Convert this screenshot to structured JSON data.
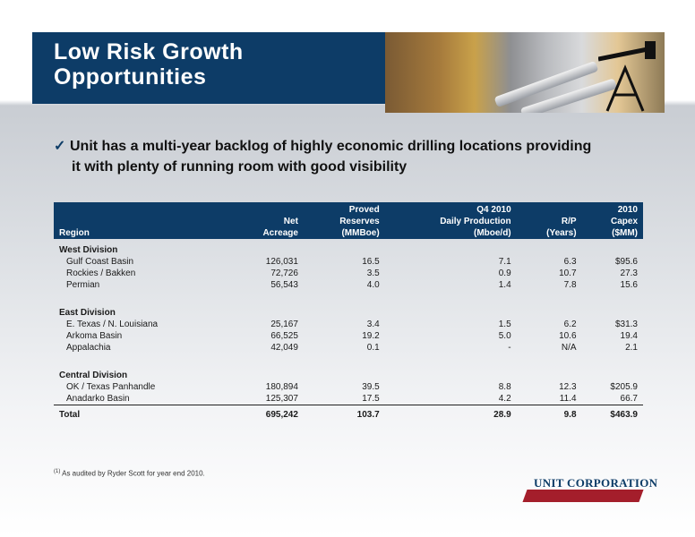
{
  "header": {
    "title_line1": "Low Risk Growth",
    "title_line2": "Opportunities"
  },
  "bullet": {
    "line1": "Unit has a multi-year backlog of highly economic drilling locations providing",
    "line2": "it with plenty of running room with good visibility"
  },
  "table": {
    "headers_row1": [
      "",
      "",
      "Proved",
      "Q4 2010",
      "",
      "2010"
    ],
    "headers_row2": [
      "",
      "Net",
      "Reserves",
      "Daily Production",
      "R/P",
      "Capex"
    ],
    "headers_row3": [
      "Region",
      "Acreage",
      "(MMBoe)",
      "(Mboe/d)",
      "(Years)",
      "($MM)"
    ],
    "west": {
      "name": "West Division",
      "rows": [
        [
          "Gulf Coast Basin",
          "126,031",
          "16.5",
          "7.1",
          "6.3",
          "$95.6"
        ],
        [
          "Rockies / Bakken",
          "72,726",
          "3.5",
          "0.9",
          "10.7",
          "27.3"
        ],
        [
          "Permian",
          "56,543",
          "4.0",
          "1.4",
          "7.8",
          "15.6"
        ]
      ]
    },
    "east": {
      "name": "East Division",
      "rows": [
        [
          "E. Texas / N. Louisiana",
          "25,167",
          "3.4",
          "1.5",
          "6.2",
          "$31.3"
        ],
        [
          "Arkoma Basin",
          "66,525",
          "19.2",
          "5.0",
          "10.6",
          "19.4"
        ],
        [
          "Appalachia",
          "42,049",
          "0.1",
          "-",
          "N/A",
          "2.1"
        ]
      ]
    },
    "central": {
      "name": "Central Division",
      "rows": [
        [
          "OK / Texas Panhandle",
          "180,894",
          "39.5",
          "8.8",
          "12.3",
          "$205.9"
        ],
        [
          "Anadarko Basin",
          "125,307",
          "17.5",
          "4.2",
          "11.4",
          "66.7"
        ]
      ]
    },
    "total": [
      "Total",
      "695,242",
      "103.7",
      "28.9",
      "9.8",
      "$463.9"
    ]
  },
  "footnote": {
    "marker": "(1)",
    "text": "As audited by Ryder Scott for year end 2010."
  },
  "logo": {
    "text": "UNIT CORPORATION"
  }
}
